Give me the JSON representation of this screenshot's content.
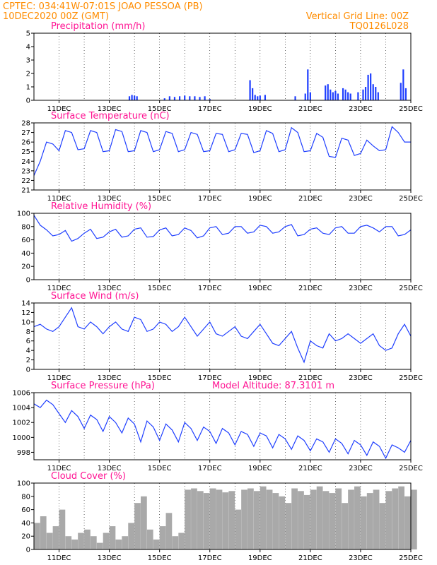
{
  "header": {
    "line1_left": "CPTEC:   034:41W-07:01S   JOAO PESSOA (PB)",
    "line2_left": "10DEC2020 00Z (GMT)",
    "line2_right": "Vertical Grid Line: 00Z",
    "line3_right": "TQ0126L028"
  },
  "colors": {
    "header": "#ff8c00",
    "panel_title": "#ff1493",
    "series": "#1f3fff",
    "bars": "#1f3fff",
    "cloud": "#a9a9a9"
  },
  "x_tick_labels": [
    "11DEC",
    "13DEC",
    "15DEC",
    "17DEC",
    "19DEC",
    "21DEC",
    "23DEC",
    "25DEC"
  ],
  "chart_data": [
    {
      "type": "bar",
      "title": "Precipitation (mm/h)",
      "ylim": [
        0,
        5
      ],
      "yticks": [
        "0",
        "1",
        "2",
        "3",
        "4",
        "5"
      ],
      "x_days": [
        3.8,
        3.9,
        4.0,
        4.1,
        5.2,
        5.4,
        5.6,
        5.8,
        6.0,
        6.2,
        6.4,
        6.6,
        6.8,
        7.0,
        8.6,
        8.7,
        8.8,
        8.9,
        9.0,
        9.2,
        10.4,
        10.8,
        10.9,
        11.0,
        11.6,
        11.7,
        11.8,
        11.9,
        12.0,
        12.1,
        12.3,
        12.4,
        12.5,
        12.6,
        12.9,
        13.1,
        13.2,
        13.3,
        13.4,
        13.5,
        13.6,
        13.7,
        14.6,
        14.7,
        14.8
      ],
      "values": [
        0.3,
        0.4,
        0.35,
        0.3,
        0.15,
        0.3,
        0.25,
        0.3,
        0.35,
        0.3,
        0.3,
        0.25,
        0.3,
        0.1,
        1.5,
        0.9,
        0.4,
        0.3,
        0.35,
        0.4,
        0.3,
        0.5,
        2.3,
        0.6,
        1.1,
        1.2,
        0.8,
        0.6,
        0.7,
        0.5,
        0.9,
        0.8,
        0.6,
        0.5,
        0.6,
        0.8,
        1.0,
        1.9,
        2.0,
        1.2,
        1.0,
        0.6,
        1.3,
        2.3,
        0.9
      ]
    },
    {
      "type": "line",
      "title": "Surface Temperature (nC)",
      "ylim": [
        21,
        28
      ],
      "yticks": [
        "21",
        "22",
        "23",
        "24",
        "25",
        "26",
        "27",
        "28"
      ],
      "x_days": [
        0,
        0.25,
        0.5,
        0.75,
        1.0,
        1.25,
        1.5,
        1.75,
        2.0,
        2.25,
        2.5,
        2.75,
        3.0,
        3.25,
        3.5,
        3.75,
        4.0,
        4.25,
        4.5,
        4.75,
        5.0,
        5.25,
        5.5,
        5.75,
        6.0,
        6.25,
        6.5,
        6.75,
        7.0,
        7.25,
        7.5,
        7.75,
        8.0,
        8.25,
        8.5,
        8.75,
        9.0,
        9.25,
        9.5,
        9.75,
        10.0,
        10.25,
        10.5,
        10.75,
        11.0,
        11.25,
        11.5,
        11.75,
        12.0,
        12.25,
        12.5,
        12.75,
        13.0,
        13.25,
        13.5,
        13.75,
        14.0,
        14.25,
        14.5,
        14.75,
        15.0
      ],
      "values": [
        22.5,
        24.0,
        26.0,
        25.8,
        25.1,
        27.2,
        27.0,
        25.2,
        25.3,
        27.2,
        27.0,
        25.0,
        25.1,
        27.3,
        27.1,
        25.0,
        25.1,
        27.2,
        27.0,
        25.0,
        25.2,
        27.1,
        26.9,
        25.0,
        25.2,
        27.0,
        26.8,
        25.0,
        25.1,
        26.9,
        26.8,
        25.0,
        25.2,
        26.9,
        26.8,
        24.9,
        25.1,
        27.2,
        26.9,
        25.0,
        25.2,
        27.5,
        27.0,
        25.0,
        25.1,
        26.9,
        26.5,
        24.5,
        24.4,
        26.4,
        26.2,
        24.6,
        24.8,
        26.2,
        25.6,
        25.1,
        25.2,
        27.6,
        27.0,
        26.0,
        26.0
      ]
    },
    {
      "type": "line",
      "title": "Relative Humidity (%)",
      "ylim": [
        0,
        100
      ],
      "yticks": [
        "0",
        "20",
        "40",
        "60",
        "80",
        "100"
      ],
      "x_days": [
        0,
        0.25,
        0.5,
        0.75,
        1.0,
        1.25,
        1.5,
        1.75,
        2.0,
        2.25,
        2.5,
        2.75,
        3.0,
        3.25,
        3.5,
        3.75,
        4.0,
        4.25,
        4.5,
        4.75,
        5.0,
        5.25,
        5.5,
        5.75,
        6.0,
        6.25,
        6.5,
        6.75,
        7.0,
        7.25,
        7.5,
        7.75,
        8.0,
        8.25,
        8.5,
        8.75,
        9.0,
        9.25,
        9.5,
        9.75,
        10.0,
        10.25,
        10.5,
        10.75,
        11.0,
        11.25,
        11.5,
        11.75,
        12.0,
        12.25,
        12.5,
        12.75,
        13.0,
        13.25,
        13.5,
        13.75,
        14.0,
        14.25,
        14.5,
        14.75,
        15.0
      ],
      "values": [
        97,
        82,
        75,
        66,
        68,
        74,
        58,
        62,
        70,
        76,
        62,
        64,
        72,
        76,
        64,
        66,
        76,
        78,
        64,
        65,
        75,
        78,
        66,
        68,
        78,
        74,
        63,
        66,
        78,
        80,
        68,
        70,
        80,
        80,
        70,
        72,
        82,
        80,
        70,
        72,
        80,
        83,
        66,
        68,
        76,
        78,
        70,
        68,
        78,
        80,
        70,
        70,
        80,
        82,
        78,
        72,
        80,
        80,
        66,
        68,
        75
      ]
    },
    {
      "type": "line",
      "title": "Surface Wind (m/s)",
      "ylim": [
        0,
        14
      ],
      "yticks": [
        "0",
        "2",
        "4",
        "6",
        "8",
        "10",
        "12",
        "14"
      ],
      "x_days": [
        0,
        0.25,
        0.5,
        0.75,
        1.0,
        1.25,
        1.5,
        1.75,
        2.0,
        2.25,
        2.5,
        2.75,
        3.0,
        3.25,
        3.5,
        3.75,
        4.0,
        4.25,
        4.5,
        4.75,
        5.0,
        5.25,
        5.5,
        5.75,
        6.0,
        6.25,
        6.5,
        6.75,
        7.0,
        7.25,
        7.5,
        7.75,
        8.0,
        8.25,
        8.5,
        8.75,
        9.0,
        9.25,
        9.5,
        9.75,
        10.0,
        10.25,
        10.5,
        10.75,
        11.0,
        11.25,
        11.5,
        11.75,
        12.0,
        12.25,
        12.5,
        12.75,
        13.0,
        13.25,
        13.5,
        13.75,
        14.0,
        14.25,
        14.5,
        14.75,
        15.0
      ],
      "values": [
        9,
        9.5,
        8.5,
        8,
        9,
        11,
        13,
        9,
        8.5,
        10,
        9,
        7.5,
        9,
        10,
        8.5,
        8,
        11,
        10.5,
        8,
        8.5,
        10,
        9.5,
        8,
        9,
        11,
        9,
        7,
        8.5,
        10,
        7.5,
        7,
        8,
        9,
        7,
        6.5,
        8,
        9.5,
        7.5,
        5.5,
        5,
        6.5,
        8,
        4.5,
        1.5,
        6,
        5,
        4.5,
        7.5,
        6,
        6.5,
        7.5,
        6.5,
        5.5,
        6.5,
        7.5,
        5,
        4,
        4.5,
        7.5,
        9.5,
        7
      ]
    },
    {
      "type": "line",
      "title": "Surface Pressure (hPa)",
      "annotation": "Model Altitude: 87.3101 m",
      "ylim": [
        997,
        1006
      ],
      "yticks": [
        "998",
        "1000",
        "1002",
        "1004",
        "1006"
      ],
      "x_days": [
        0,
        0.25,
        0.5,
        0.75,
        1.0,
        1.25,
        1.5,
        1.75,
        2.0,
        2.25,
        2.5,
        2.75,
        3.0,
        3.25,
        3.5,
        3.75,
        4.0,
        4.25,
        4.5,
        4.75,
        5.0,
        5.25,
        5.5,
        5.75,
        6.0,
        6.25,
        6.5,
        6.75,
        7.0,
        7.25,
        7.5,
        7.75,
        8.0,
        8.25,
        8.5,
        8.75,
        9.0,
        9.25,
        9.5,
        9.75,
        10.0,
        10.25,
        10.5,
        10.75,
        11.0,
        11.25,
        11.5,
        11.75,
        12.0,
        12.25,
        12.5,
        12.75,
        13.0,
        13.25,
        13.5,
        13.75,
        14.0,
        14.25,
        14.5,
        14.75,
        15.0
      ],
      "values": [
        1004.5,
        1004.0,
        1005.0,
        1004.4,
        1003.2,
        1002.0,
        1003.6,
        1002.8,
        1001.2,
        1003.0,
        1002.4,
        1000.8,
        1002.8,
        1002.0,
        1000.6,
        1002.6,
        1001.8,
        999.4,
        1002.2,
        1001.4,
        999.6,
        1001.8,
        1001.0,
        999.4,
        1002.0,
        1001.2,
        999.6,
        1001.4,
        1000.8,
        999.2,
        1001.2,
        1000.6,
        999.0,
        1000.8,
        1000.4,
        998.8,
        1000.6,
        1000.2,
        998.6,
        1000.4,
        999.8,
        998.4,
        1000.2,
        999.6,
        998.2,
        999.8,
        999.4,
        998.0,
        999.8,
        999.2,
        997.8,
        999.6,
        999.0,
        997.6,
        999.4,
        998.8,
        997.2,
        999.0,
        998.6,
        998.0,
        999.6
      ]
    },
    {
      "type": "area",
      "title": "Cloud Cover (%)",
      "ylim": [
        0,
        100
      ],
      "yticks": [
        "0",
        "20",
        "40",
        "60",
        "80",
        "100"
      ],
      "x_days": [
        0,
        0.25,
        0.5,
        0.75,
        1.0,
        1.25,
        1.5,
        1.75,
        2.0,
        2.25,
        2.5,
        2.75,
        3.0,
        3.25,
        3.5,
        3.75,
        4.0,
        4.25,
        4.5,
        4.75,
        5.0,
        5.25,
        5.5,
        5.75,
        6.0,
        6.25,
        6.5,
        6.75,
        7.0,
        7.25,
        7.5,
        7.75,
        8.0,
        8.25,
        8.5,
        8.75,
        9.0,
        9.25,
        9.5,
        9.75,
        10.0,
        10.25,
        10.5,
        10.75,
        11.0,
        11.25,
        11.5,
        11.75,
        12.0,
        12.25,
        12.5,
        12.75,
        13.0,
        13.25,
        13.5,
        13.75,
        14.0,
        14.25,
        14.5,
        14.75,
        15.0
      ],
      "values": [
        40,
        50,
        25,
        35,
        60,
        20,
        15,
        25,
        30,
        20,
        10,
        25,
        35,
        15,
        20,
        40,
        70,
        80,
        30,
        15,
        35,
        55,
        20,
        25,
        90,
        92,
        88,
        85,
        92,
        90,
        86,
        88,
        60,
        90,
        92,
        88,
        95,
        90,
        85,
        80,
        70,
        92,
        88,
        82,
        90,
        95,
        88,
        85,
        92,
        70,
        90,
        95,
        80,
        85,
        90,
        70,
        88,
        92,
        95,
        80,
        90
      ]
    }
  ]
}
